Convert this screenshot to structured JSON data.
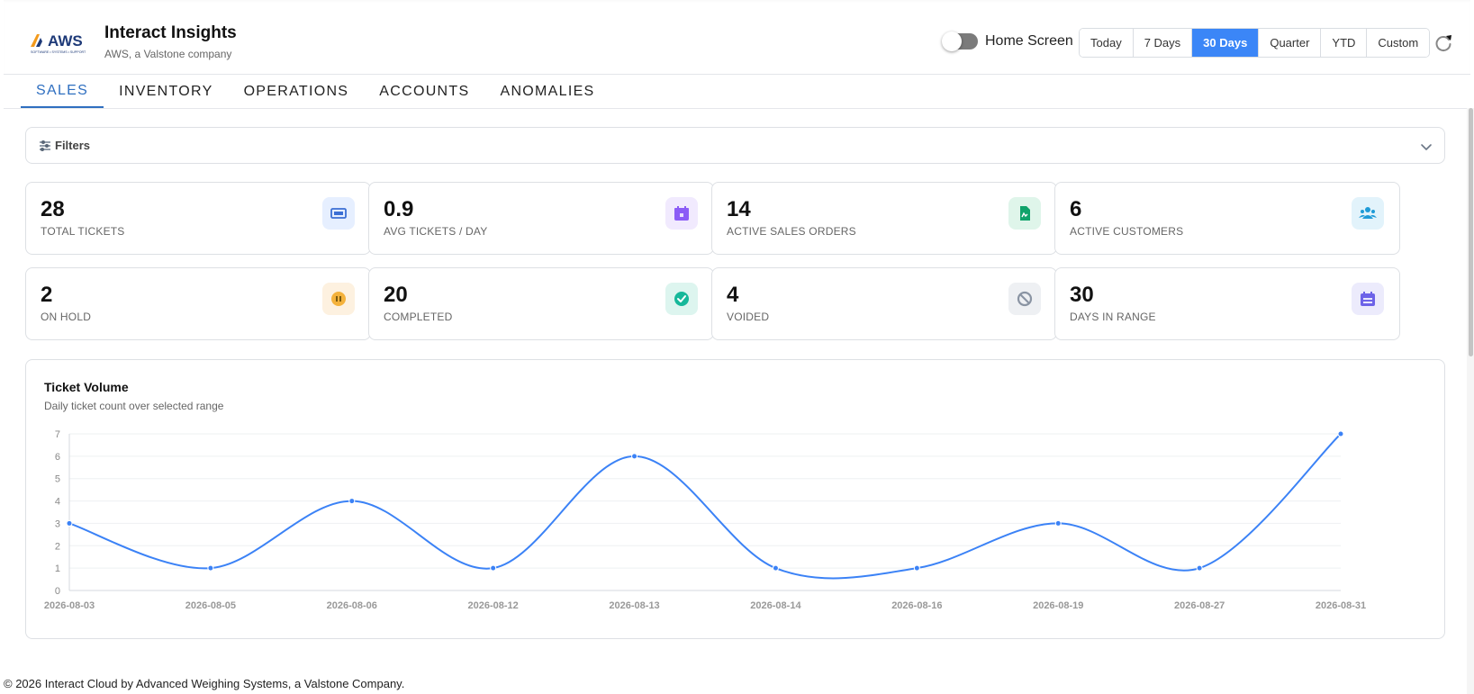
{
  "header": {
    "logo_text": "AWS",
    "logo_tagline": "SOFTWARE • SYSTEMS • SUPPORT",
    "title": "Interact Insights",
    "subtitle": "AWS, a Valstone company",
    "home_screen_label": "Home Screen",
    "home_screen_on": false,
    "ranges": [
      "Today",
      "7 Days",
      "30 Days",
      "Quarter",
      "YTD",
      "Custom"
    ],
    "active_range": "30 Days"
  },
  "tabs": [
    {
      "label": "SALES",
      "active": true
    },
    {
      "label": "INVENTORY",
      "active": false
    },
    {
      "label": "OPERATIONS",
      "active": false
    },
    {
      "label": "ACCOUNTS",
      "active": false
    },
    {
      "label": "ANOMALIES",
      "active": false
    }
  ],
  "filters": {
    "label": "Filters"
  },
  "kpis": [
    {
      "value": "28",
      "label": "TOTAL TICKETS",
      "icon": "ticket-icon",
      "icon_color": "#3b6fd4",
      "icon_bg": "#e6efff"
    },
    {
      "value": "0.9",
      "label": "AVG TICKETS / DAY",
      "icon": "calendar-icon",
      "icon_color": "#8b5cf6",
      "icon_bg": "#f1eafe"
    },
    {
      "value": "14",
      "label": "ACTIVE SALES ORDERS",
      "icon": "document-icon",
      "icon_color": "#10a36b",
      "icon_bg": "#dff5ea"
    },
    {
      "value": "6",
      "label": "ACTIVE CUSTOMERS",
      "icon": "users-icon",
      "icon_color": "#1f9bd7",
      "icon_bg": "#e2f3fb"
    },
    {
      "value": "2",
      "label": "ON HOLD",
      "icon": "pause-icon",
      "icon_color": "#f4b23c",
      "icon_bg": "#fdf1e0"
    },
    {
      "value": "20",
      "label": "COMPLETED",
      "icon": "check-icon",
      "icon_color": "#16b89a",
      "icon_bg": "#ddf5ef"
    },
    {
      "value": "4",
      "label": "VOIDED",
      "icon": "void-icon",
      "icon_color": "#8a94a3",
      "icon_bg": "#eef0f3"
    },
    {
      "value": "30",
      "label": "DAYS IN RANGE",
      "icon": "calendar-range-icon",
      "icon_color": "#6d63e8",
      "icon_bg": "#ecebfc"
    }
  ],
  "chart": {
    "title": "Ticket Volume",
    "subtitle": "Daily ticket count over selected range"
  },
  "chart_data": {
    "type": "line",
    "x": [
      "2026-08-03",
      "2026-08-05",
      "2026-08-06",
      "2026-08-12",
      "2026-08-13",
      "2026-08-14",
      "2026-08-16",
      "2026-08-19",
      "2026-08-27",
      "2026-08-31"
    ],
    "series": [
      {
        "values": [
          3,
          1,
          4,
          1,
          6,
          1,
          1,
          3,
          1,
          7
        ],
        "color": "#3b82f6"
      }
    ],
    "ylim": [
      0,
      7
    ],
    "yticks": [
      0,
      1,
      2,
      3,
      4,
      5,
      6,
      7
    ],
    "grid": true,
    "smooth": true
  },
  "footer": {
    "text": "© 2026 Interact Cloud by Advanced Weighing Systems, a Valstone Company."
  }
}
